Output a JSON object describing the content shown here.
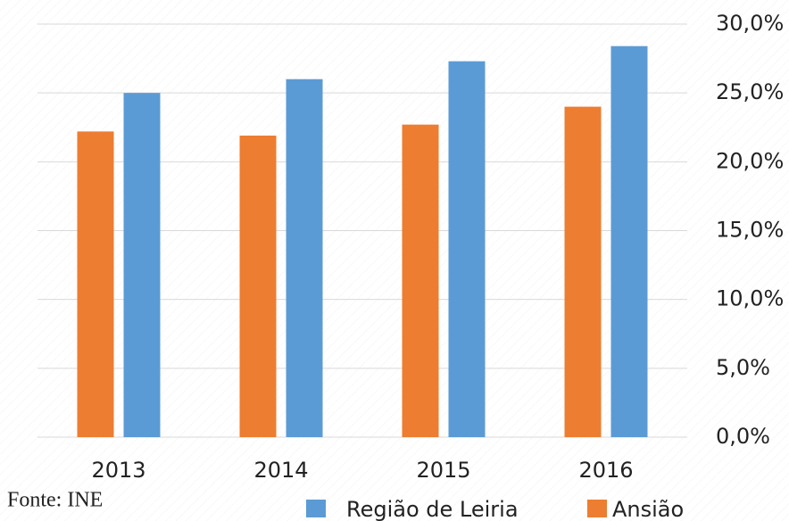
{
  "chart_data": {
    "type": "bar",
    "categories": [
      "2013",
      "2014",
      "2015",
      "2016"
    ],
    "series": [
      {
        "name": "Ansião",
        "color": "#ed7d31",
        "values": [
          22.2,
          21.9,
          22.7,
          24.0
        ]
      },
      {
        "name": "Região de Leiria",
        "color": "#5b9bd5",
        "values": [
          25.0,
          26.0,
          27.3,
          28.4
        ]
      }
    ],
    "legend_order": [
      "Região de Leiria",
      "Ansião"
    ],
    "ylim": [
      0,
      30
    ],
    "yticks": [
      {
        "value": 0,
        "label": "0,0%"
      },
      {
        "value": 5,
        "label": "5,0%"
      },
      {
        "value": 10,
        "label": "10,0%"
      },
      {
        "value": 15,
        "label": "15,0%"
      },
      {
        "value": 20,
        "label": "20,0%"
      },
      {
        "value": 25,
        "label": "25,0%"
      },
      {
        "value": 30,
        "label": "30,0%"
      }
    ],
    "y_axis_side": "right",
    "grid": true,
    "legend_position": "bottom",
    "source": "Fonte: INE"
  }
}
